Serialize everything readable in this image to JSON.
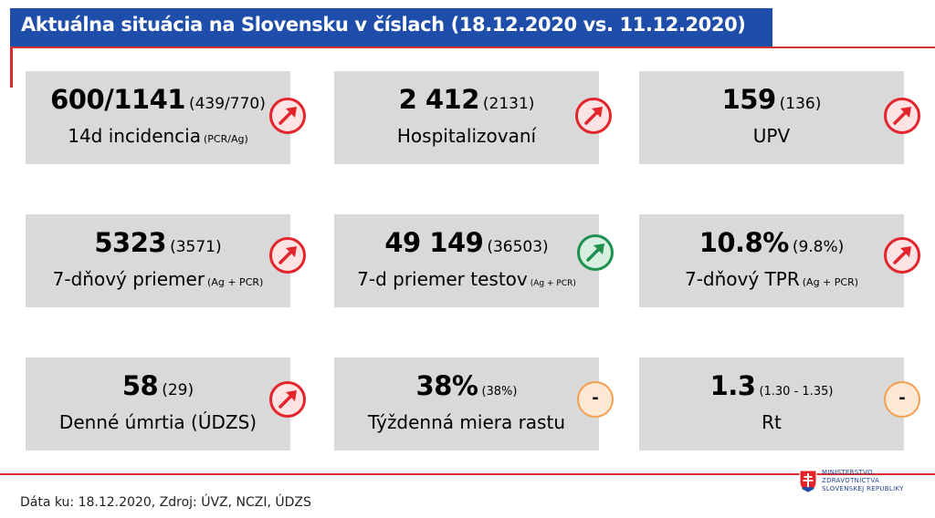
{
  "title": "Aktuálna situácia na Slovensku v číslach (18.12.2020 vs. 11.12.2020)",
  "cards": [
    {
      "value": "600/1141",
      "prev": "(439/770)",
      "label": "14d incidencia",
      "sub": "(PCR/Ag)",
      "trend": "up",
      "trend_color": "red"
    },
    {
      "value": "2 412",
      "prev": "(2131)",
      "label": "Hospitalizovaní",
      "sub": "",
      "trend": "up",
      "trend_color": "red"
    },
    {
      "value": "159",
      "prev": "(136)",
      "label": "UPV",
      "sub": "",
      "trend": "up",
      "trend_color": "red"
    },
    {
      "value": "5323",
      "prev": "(3571)",
      "label": "7-dňový priemer",
      "sub": "(Ag + PCR)",
      "trend": "up",
      "trend_color": "red"
    },
    {
      "value": "49 149",
      "prev": "(36503)",
      "label": "7-d priemer testov",
      "sub": "(Ag + PCR)",
      "trend": "up",
      "trend_color": "green"
    },
    {
      "value": "10.8%",
      "prev": "(9.8%)",
      "label": "7-dňový TPR",
      "sub": "(Ag + PCR)",
      "trend": "up",
      "trend_color": "red"
    },
    {
      "value": "58",
      "prev": "(29)",
      "label": "Denné úmrtia (ÚDZS)",
      "sub": "",
      "trend": "up",
      "trend_color": "red"
    },
    {
      "value": "38%",
      "prev": "(38%)",
      "label": "Týždenná miera rastu",
      "sub": "",
      "trend": "neutral",
      "trend_symbol": "-",
      "trend_color": "orange"
    },
    {
      "value": "1.3",
      "prev": "(1.30 - 1.35)",
      "label": "Rt",
      "sub": "",
      "trend": "neutral",
      "trend_symbol": "-",
      "trend_color": "orange"
    }
  ],
  "footer": {
    "source": "Dáta ku: 18.12.2020, Zdroj: ÚVZ, NCZI, ÚDZS"
  },
  "logo": {
    "lines": [
      "MINISTERSTVO",
      "ZDRAVOTNÍCTVA",
      "SLOVENSKEJ REPUBLIKY"
    ]
  },
  "colors": {
    "title_bg": "#1f4eaa",
    "accent_red": "#d32f2f",
    "card_bg": "#d9d9d9",
    "trend_red": "#e3242b",
    "trend_green": "#1e8f4e",
    "trend_orange": "#f0a050"
  }
}
